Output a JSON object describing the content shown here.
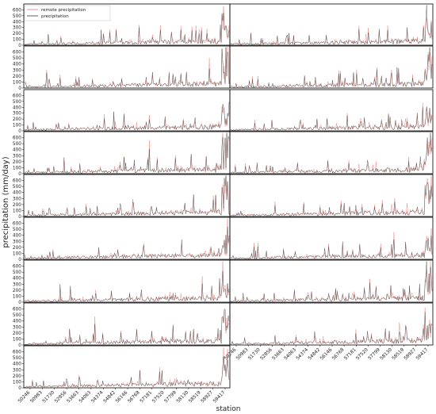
{
  "chart_data": {
    "type": "line",
    "xlabel": "station",
    "ylabel": "precipitation (mm/day)",
    "ylim": [
      0,
      700
    ],
    "y_ticks": [
      0,
      100,
      200,
      300,
      400,
      500,
      600
    ],
    "grid": false,
    "legend_placement": "top-left of first panel",
    "layout": {
      "rows": 9,
      "cols": 2,
      "last_row_panels": 1
    },
    "station_ticks": [
      "50246",
      "50983",
      "51730",
      "52856",
      "53663",
      "54063",
      "54374",
      "54842",
      "56146",
      "56768",
      "57181",
      "57520",
      "57799",
      "58130",
      "58519",
      "58927",
      "59417"
    ],
    "series": [
      {
        "name": "remote precipitation",
        "color": "#e8756f",
        "approx_baseline": 40,
        "approx_peak": 600
      },
      {
        "name": "precipitation",
        "color": "#3a3a3a",
        "approx_baseline": 40,
        "approx_peak": 550
      }
    ],
    "colors": {
      "remote": "#e8756f",
      "observed": "#3a3a3a"
    }
  }
}
